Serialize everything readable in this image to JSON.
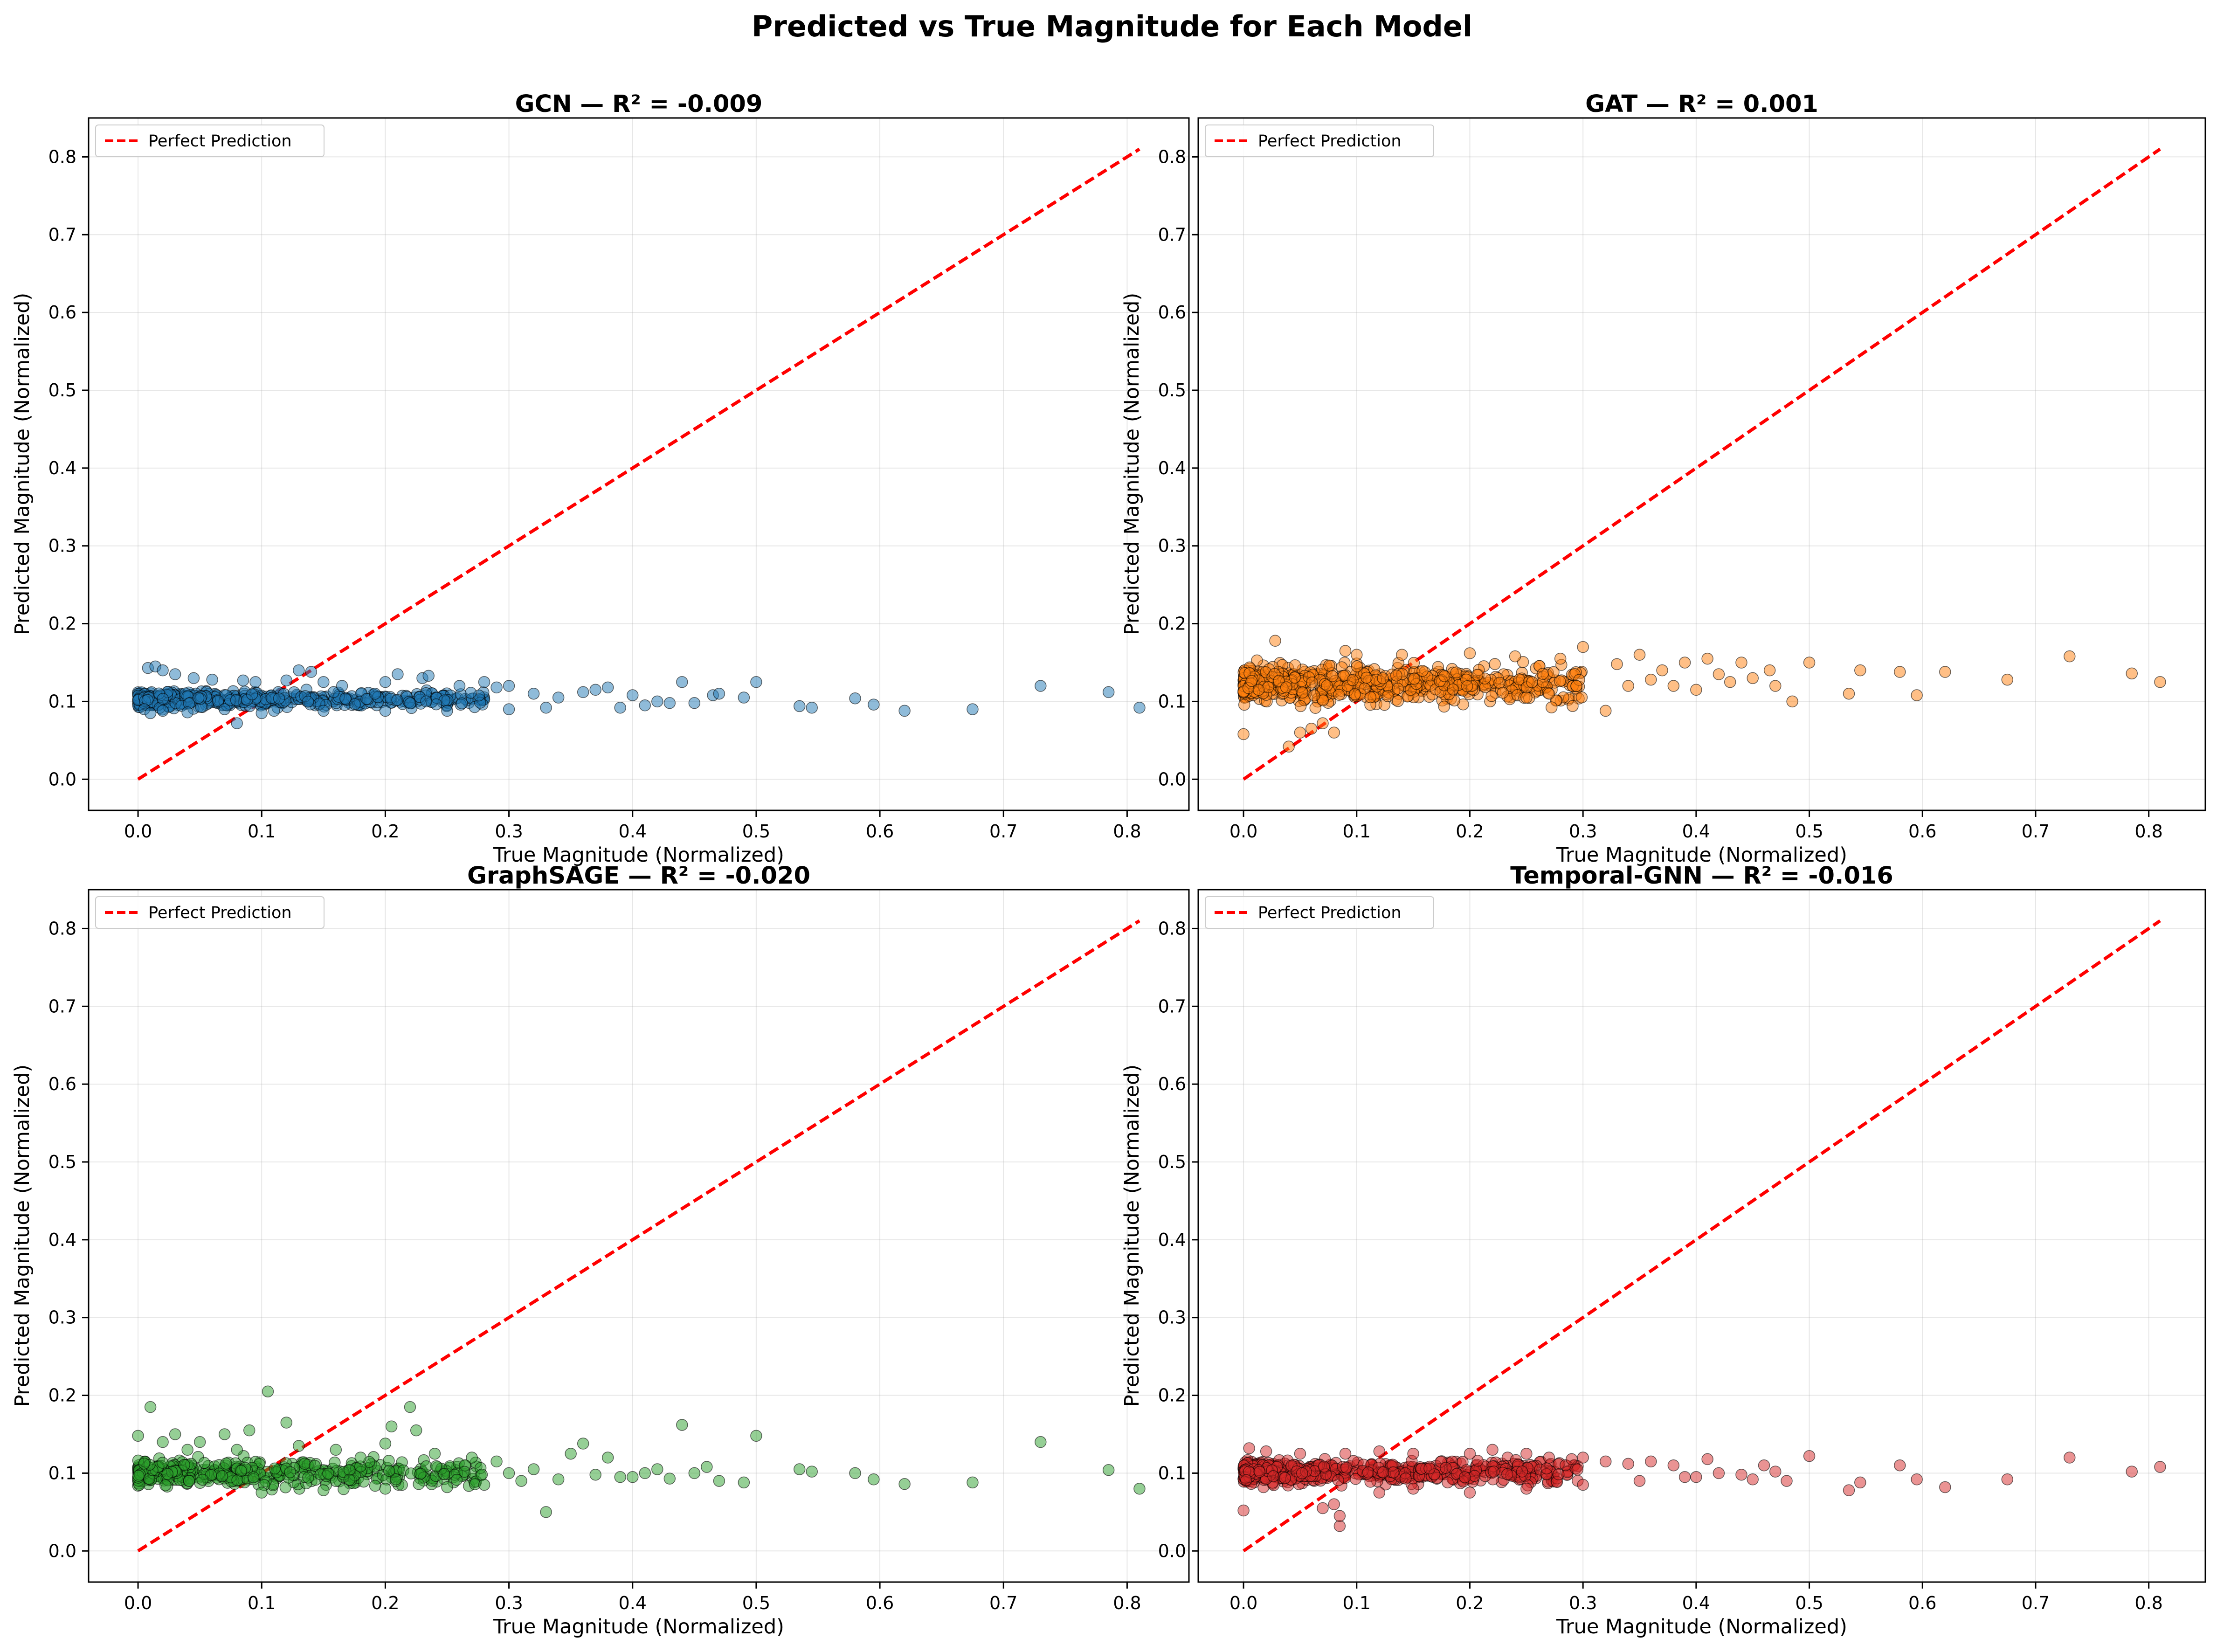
{
  "figure": {
    "title": "Predicted vs True Magnitude for Each Model"
  },
  "chart_data": [
    {
      "type": "scatter",
      "title": "GCN — R² = -0.009",
      "model": "GCN",
      "r2": -0.009,
      "xlabel": "True Magnitude (Normalized)",
      "ylabel": "Predicted Magnitude (Normalized)",
      "xlim": [
        -0.04,
        0.85
      ],
      "ylim": [
        -0.04,
        0.85
      ],
      "xticks": [
        "0.0",
        "0.1",
        "0.2",
        "0.3",
        "0.4",
        "0.5",
        "0.6",
        "0.7",
        "0.8"
      ],
      "yticks": [
        "0.0",
        "0.1",
        "0.2",
        "0.3",
        "0.4",
        "0.5",
        "0.6",
        "0.7",
        "0.8"
      ],
      "grid": true,
      "legend": {
        "position": "top-left",
        "entries": [
          "Perfect Prediction"
        ]
      },
      "reference_line": {
        "name": "Perfect Prediction",
        "x": [
          0,
          0.81
        ],
        "y": [
          0,
          0.81
        ],
        "color": "#ff0000",
        "style": "dashed"
      },
      "color": "#1f77b4",
      "points": [
        [
          0.008,
          0.143
        ],
        [
          0.014,
          0.145
        ],
        [
          0.02,
          0.14
        ],
        [
          0.03,
          0.135
        ],
        [
          0.045,
          0.13
        ],
        [
          0.06,
          0.128
        ],
        [
          0.085,
          0.127
        ],
        [
          0.095,
          0.125
        ],
        [
          0.12,
          0.127
        ],
        [
          0.13,
          0.14
        ],
        [
          0.14,
          0.138
        ],
        [
          0.15,
          0.125
        ],
        [
          0.165,
          0.12
        ],
        [
          0.2,
          0.125
        ],
        [
          0.21,
          0.135
        ],
        [
          0.23,
          0.13
        ],
        [
          0.235,
          0.133
        ],
        [
          0.26,
          0.12
        ],
        [
          0.28,
          0.125
        ],
        [
          0.29,
          0.118
        ],
        [
          0.3,
          0.12
        ],
        [
          0.32,
          0.11
        ],
        [
          0.34,
          0.105
        ],
        [
          0.36,
          0.112
        ],
        [
          0.37,
          0.115
        ],
        [
          0.38,
          0.118
        ],
        [
          0.4,
          0.108
        ],
        [
          0.42,
          0.1
        ],
        [
          0.44,
          0.125
        ],
        [
          0.45,
          0.098
        ],
        [
          0.465,
          0.108
        ],
        [
          0.47,
          0.11
        ],
        [
          0.49,
          0.105
        ],
        [
          0.5,
          0.125
        ],
        [
          0.535,
          0.094
        ],
        [
          0.545,
          0.092
        ],
        [
          0.58,
          0.104
        ],
        [
          0.595,
          0.096
        ],
        [
          0.62,
          0.088
        ],
        [
          0.675,
          0.09
        ],
        [
          0.73,
          0.12
        ],
        [
          0.785,
          0.112
        ],
        [
          0.81,
          0.092
        ],
        [
          0.005,
          0.09
        ],
        [
          0.01,
          0.085
        ],
        [
          0.02,
          0.088
        ],
        [
          0.04,
          0.086
        ],
        [
          0.07,
          0.09
        ],
        [
          0.08,
          0.072
        ],
        [
          0.1,
          0.085
        ],
        [
          0.11,
          0.088
        ],
        [
          0.15,
          0.088
        ],
        [
          0.2,
          0.088
        ],
        [
          0.25,
          0.088
        ],
        [
          0.3,
          0.09
        ],
        [
          0.33,
          0.092
        ],
        [
          0.39,
          0.092
        ],
        [
          0.41,
          0.095
        ],
        [
          0.43,
          0.098
        ]
      ],
      "cluster": {
        "x": [
          0.0,
          0.28
        ],
        "y": [
          0.088,
          0.118
        ],
        "n": 500
      }
    },
    {
      "type": "scatter",
      "title": "GAT — R² = 0.001",
      "model": "GAT",
      "r2": 0.001,
      "xlabel": "True Magnitude (Normalized)",
      "ylabel": "Predicted Magnitude (Normalized)",
      "xlim": [
        -0.04,
        0.85
      ],
      "ylim": [
        -0.04,
        0.85
      ],
      "xticks": [
        "0.0",
        "0.1",
        "0.2",
        "0.3",
        "0.4",
        "0.5",
        "0.6",
        "0.7",
        "0.8"
      ],
      "yticks": [
        "0.0",
        "0.1",
        "0.2",
        "0.3",
        "0.4",
        "0.5",
        "0.6",
        "0.7",
        "0.8"
      ],
      "grid": true,
      "legend": {
        "position": "top-left",
        "entries": [
          "Perfect Prediction"
        ]
      },
      "reference_line": {
        "name": "Perfect Prediction",
        "x": [
          0,
          0.81
        ],
        "y": [
          0,
          0.81
        ],
        "color": "#ff0000",
        "style": "dashed"
      },
      "color": "#ff7f0e",
      "points": [
        [
          0.0,
          0.058
        ],
        [
          0.028,
          0.178
        ],
        [
          0.04,
          0.042
        ],
        [
          0.05,
          0.06
        ],
        [
          0.06,
          0.065
        ],
        [
          0.07,
          0.072
        ],
        [
          0.08,
          0.06
        ],
        [
          0.09,
          0.165
        ],
        [
          0.1,
          0.16
        ],
        [
          0.14,
          0.16
        ],
        [
          0.2,
          0.162
        ],
        [
          0.24,
          0.158
        ],
        [
          0.28,
          0.155
        ],
        [
          0.3,
          0.17
        ],
        [
          0.32,
          0.088
        ],
        [
          0.33,
          0.148
        ],
        [
          0.35,
          0.16
        ],
        [
          0.37,
          0.14
        ],
        [
          0.39,
          0.15
        ],
        [
          0.4,
          0.115
        ],
        [
          0.41,
          0.155
        ],
        [
          0.42,
          0.135
        ],
        [
          0.43,
          0.125
        ],
        [
          0.44,
          0.15
        ],
        [
          0.45,
          0.13
        ],
        [
          0.465,
          0.14
        ],
        [
          0.47,
          0.12
        ],
        [
          0.485,
          0.1
        ],
        [
          0.5,
          0.15
        ],
        [
          0.535,
          0.11
        ],
        [
          0.545,
          0.14
        ],
        [
          0.58,
          0.138
        ],
        [
          0.595,
          0.108
        ],
        [
          0.62,
          0.138
        ],
        [
          0.675,
          0.128
        ],
        [
          0.73,
          0.158
        ],
        [
          0.785,
          0.136
        ],
        [
          0.81,
          0.125
        ],
        [
          0.25,
          0.105
        ],
        [
          0.27,
          0.11
        ],
        [
          0.34,
          0.12
        ],
        [
          0.36,
          0.128
        ],
        [
          0.38,
          0.12
        ]
      ],
      "cluster": {
        "x": [
          0.0,
          0.3
        ],
        "y": [
          0.09,
          0.155
        ],
        "n": 650
      }
    },
    {
      "type": "scatter",
      "title": "GraphSAGE — R² = -0.020",
      "model": "GraphSAGE",
      "r2": -0.02,
      "xlabel": "True Magnitude (Normalized)",
      "ylabel": "Predicted Magnitude (Normalized)",
      "xlim": [
        -0.04,
        0.85
      ],
      "ylim": [
        -0.04,
        0.85
      ],
      "xticks": [
        "0.0",
        "0.1",
        "0.2",
        "0.3",
        "0.4",
        "0.5",
        "0.6",
        "0.7",
        "0.8"
      ],
      "yticks": [
        "0.0",
        "0.1",
        "0.2",
        "0.3",
        "0.4",
        "0.5",
        "0.6",
        "0.7",
        "0.8"
      ],
      "grid": true,
      "legend": {
        "position": "top-left",
        "entries": [
          "Perfect Prediction"
        ]
      },
      "reference_line": {
        "name": "Perfect Prediction",
        "x": [
          0,
          0.81
        ],
        "y": [
          0,
          0.81
        ],
        "color": "#ff0000",
        "style": "dashed"
      },
      "color": "#2ca02c",
      "points": [
        [
          0.0,
          0.148
        ],
        [
          0.01,
          0.185
        ],
        [
          0.02,
          0.14
        ],
        [
          0.03,
          0.15
        ],
        [
          0.04,
          0.13
        ],
        [
          0.05,
          0.14
        ],
        [
          0.07,
          0.15
        ],
        [
          0.08,
          0.13
        ],
        [
          0.09,
          0.155
        ],
        [
          0.105,
          0.205
        ],
        [
          0.12,
          0.165
        ],
        [
          0.13,
          0.135
        ],
        [
          0.16,
          0.13
        ],
        [
          0.18,
          0.12
        ],
        [
          0.2,
          0.138
        ],
        [
          0.205,
          0.16
        ],
        [
          0.22,
          0.185
        ],
        [
          0.225,
          0.155
        ],
        [
          0.24,
          0.125
        ],
        [
          0.27,
          0.12
        ],
        [
          0.29,
          0.115
        ],
        [
          0.3,
          0.1
        ],
        [
          0.32,
          0.105
        ],
        [
          0.33,
          0.05
        ],
        [
          0.35,
          0.125
        ],
        [
          0.36,
          0.138
        ],
        [
          0.38,
          0.12
        ],
        [
          0.39,
          0.095
        ],
        [
          0.41,
          0.1
        ],
        [
          0.42,
          0.105
        ],
        [
          0.44,
          0.162
        ],
        [
          0.45,
          0.1
        ],
        [
          0.46,
          0.108
        ],
        [
          0.47,
          0.09
        ],
        [
          0.49,
          0.088
        ],
        [
          0.5,
          0.148
        ],
        [
          0.535,
          0.105
        ],
        [
          0.545,
          0.102
        ],
        [
          0.58,
          0.1
        ],
        [
          0.595,
          0.092
        ],
        [
          0.62,
          0.086
        ],
        [
          0.675,
          0.088
        ],
        [
          0.73,
          0.14
        ],
        [
          0.785,
          0.104
        ],
        [
          0.81,
          0.08
        ],
        [
          0.1,
          0.075
        ],
        [
          0.15,
          0.078
        ],
        [
          0.2,
          0.08
        ],
        [
          0.25,
          0.082
        ],
        [
          0.28,
          0.085
        ],
        [
          0.31,
          0.09
        ],
        [
          0.34,
          0.092
        ],
        [
          0.37,
          0.098
        ],
        [
          0.4,
          0.095
        ],
        [
          0.43,
          0.093
        ]
      ],
      "cluster": {
        "x": [
          0.0,
          0.28
        ],
        "y": [
          0.075,
          0.125
        ],
        "n": 420
      }
    },
    {
      "type": "scatter",
      "title": "Temporal-GNN — R² = -0.016",
      "model": "Temporal-GNN",
      "r2": -0.016,
      "xlabel": "True Magnitude (Normalized)",
      "ylabel": "Predicted Magnitude (Normalized)",
      "xlim": [
        -0.04,
        0.85
      ],
      "ylim": [
        -0.04,
        0.85
      ],
      "xticks": [
        "0.0",
        "0.1",
        "0.2",
        "0.3",
        "0.4",
        "0.5",
        "0.6",
        "0.7",
        "0.8"
      ],
      "yticks": [
        "0.0",
        "0.1",
        "0.2",
        "0.3",
        "0.4",
        "0.5",
        "0.6",
        "0.7",
        "0.8"
      ],
      "grid": true,
      "legend": {
        "position": "top-left",
        "entries": [
          "Perfect Prediction"
        ]
      },
      "reference_line": {
        "name": "Perfect Prediction",
        "x": [
          0,
          0.81
        ],
        "y": [
          0,
          0.81
        ],
        "color": "#ff0000",
        "style": "dashed"
      },
      "color": "#d62728",
      "points": [
        [
          0.0,
          0.052
        ],
        [
          0.005,
          0.132
        ],
        [
          0.02,
          0.128
        ],
        [
          0.05,
          0.125
        ],
        [
          0.07,
          0.055
        ],
        [
          0.08,
          0.06
        ],
        [
          0.085,
          0.032
        ],
        [
          0.085,
          0.045
        ],
        [
          0.09,
          0.125
        ],
        [
          0.12,
          0.128
        ],
        [
          0.15,
          0.125
        ],
        [
          0.2,
          0.125
        ],
        [
          0.22,
          0.13
        ],
        [
          0.25,
          0.125
        ],
        [
          0.27,
          0.12
        ],
        [
          0.29,
          0.118
        ],
        [
          0.3,
          0.12
        ],
        [
          0.32,
          0.115
        ],
        [
          0.34,
          0.112
        ],
        [
          0.36,
          0.115
        ],
        [
          0.38,
          0.11
        ],
        [
          0.39,
          0.095
        ],
        [
          0.41,
          0.118
        ],
        [
          0.42,
          0.1
        ],
        [
          0.44,
          0.098
        ],
        [
          0.45,
          0.092
        ],
        [
          0.46,
          0.11
        ],
        [
          0.47,
          0.102
        ],
        [
          0.48,
          0.09
        ],
        [
          0.5,
          0.122
        ],
        [
          0.535,
          0.078
        ],
        [
          0.545,
          0.088
        ],
        [
          0.58,
          0.11
        ],
        [
          0.595,
          0.092
        ],
        [
          0.62,
          0.082
        ],
        [
          0.675,
          0.092
        ],
        [
          0.73,
          0.12
        ],
        [
          0.785,
          0.102
        ],
        [
          0.81,
          0.108
        ],
        [
          0.12,
          0.075
        ],
        [
          0.15,
          0.08
        ],
        [
          0.2,
          0.075
        ],
        [
          0.25,
          0.08
        ],
        [
          0.3,
          0.085
        ],
        [
          0.35,
          0.09
        ],
        [
          0.4,
          0.095
        ]
      ],
      "cluster": {
        "x": [
          0.0,
          0.3
        ],
        "y": [
          0.08,
          0.122
        ],
        "n": 580
      }
    }
  ]
}
